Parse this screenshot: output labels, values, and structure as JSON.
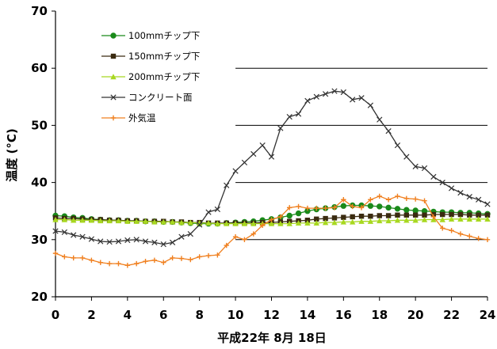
{
  "chart_data": {
    "type": "line",
    "xlabel": "平成22年 8月 18日",
    "ylabel": "温度 (°C)",
    "xlim": [
      0,
      24
    ],
    "ylim": [
      20,
      70
    ],
    "xticks": [
      "0",
      "2",
      "4",
      "6",
      "8",
      "10",
      "12",
      "14",
      "16",
      "18",
      "20",
      "22",
      "24"
    ],
    "yticks": [
      "20",
      "30",
      "40",
      "50",
      "60",
      "70"
    ],
    "gridlines": [
      30,
      40,
      50,
      60
    ],
    "grid_from_x": 10,
    "legend": "top-left",
    "x": [
      0,
      0.5,
      1,
      1.5,
      2,
      2.5,
      3,
      3.5,
      4,
      4.5,
      5,
      5.5,
      6,
      6.5,
      7,
      7.5,
      8,
      8.5,
      9,
      9.5,
      10,
      10.5,
      11,
      11.5,
      12,
      12.5,
      13,
      13.5,
      14,
      14.5,
      15,
      15.5,
      16,
      16.5,
      17,
      17.5,
      18,
      18.5,
      19,
      19.5,
      20,
      20.5,
      21,
      21.5,
      22,
      22.5,
      23,
      23.5,
      24
    ],
    "series": [
      {
        "name": "100mmチップ下",
        "color": "#1a8a1a",
        "marker": "circle",
        "values": [
          34.2,
          34.1,
          33.9,
          33.8,
          33.6,
          33.5,
          33.4,
          33.4,
          33.3,
          33.3,
          33.2,
          33.2,
          33.1,
          33.1,
          33.0,
          32.9,
          32.8,
          32.8,
          32.8,
          32.9,
          33.0,
          33.1,
          33.2,
          33.4,
          33.6,
          33.9,
          34.2,
          34.6,
          35.0,
          35.3,
          35.5,
          35.7,
          35.9,
          36.0,
          36.0,
          35.9,
          35.8,
          35.6,
          35.4,
          35.2,
          35.1,
          35.0,
          34.9,
          34.8,
          34.8,
          34.7,
          34.7,
          34.6,
          34.5
        ]
      },
      {
        "name": "150mmチップ下",
        "color": "#3a2a10",
        "marker": "square",
        "values": [
          33.8,
          33.7,
          33.7,
          33.6,
          33.5,
          33.5,
          33.4,
          33.4,
          33.3,
          33.3,
          33.2,
          33.2,
          33.2,
          33.1,
          33.1,
          33.0,
          33.0,
          32.9,
          32.9,
          32.9,
          32.9,
          32.9,
          32.9,
          33.0,
          33.0,
          33.1,
          33.2,
          33.3,
          33.4,
          33.6,
          33.7,
          33.8,
          33.9,
          34.0,
          34.1,
          34.1,
          34.2,
          34.2,
          34.3,
          34.3,
          34.3,
          34.3,
          34.4,
          34.4,
          34.4,
          34.4,
          34.3,
          34.3,
          34.3
        ]
      },
      {
        "name": "200mmチップ下",
        "color": "#a8d820",
        "marker": "triangle",
        "values": [
          33.5,
          33.5,
          33.4,
          33.4,
          33.4,
          33.3,
          33.3,
          33.3,
          33.2,
          33.2,
          33.2,
          33.1,
          33.1,
          33.1,
          33.0,
          33.0,
          32.9,
          32.9,
          32.8,
          32.8,
          32.8,
          32.8,
          32.8,
          32.8,
          32.8,
          32.8,
          32.8,
          32.9,
          32.9,
          32.9,
          33.0,
          33.0,
          33.1,
          33.1,
          33.2,
          33.2,
          33.3,
          33.3,
          33.4,
          33.4,
          33.4,
          33.5,
          33.5,
          33.5,
          33.6,
          33.6,
          33.6,
          33.6,
          33.6
        ]
      },
      {
        "name": "コンクリート面",
        "color": "#333333",
        "marker": "x",
        "values": [
          31.5,
          31.3,
          30.8,
          30.5,
          30.1,
          29.7,
          29.6,
          29.7,
          29.9,
          30.0,
          29.7,
          29.5,
          29.2,
          29.5,
          30.5,
          31.0,
          32.6,
          34.8,
          35.3,
          39.5,
          42.0,
          43.5,
          45.0,
          46.5,
          44.5,
          49.5,
          51.5,
          52.0,
          54.3,
          55.0,
          55.5,
          56.0,
          55.8,
          54.5,
          54.8,
          53.5,
          51.0,
          49.0,
          46.5,
          44.5,
          42.8,
          42.5,
          41.0,
          40.0,
          39.0,
          38.2,
          37.5,
          37.0,
          36.2
        ]
      },
      {
        "name": "外気温",
        "color": "#f08020",
        "marker": "plus",
        "values": [
          27.6,
          27.0,
          26.8,
          26.8,
          26.4,
          26.0,
          25.8,
          25.8,
          25.5,
          25.8,
          26.2,
          26.4,
          26.0,
          26.8,
          26.7,
          26.5,
          27.0,
          27.2,
          27.3,
          29.0,
          30.5,
          30.0,
          31.0,
          32.5,
          33.5,
          34.0,
          35.6,
          35.8,
          35.5,
          35.5,
          35.5,
          35.6,
          37.0,
          35.8,
          35.6,
          37.0,
          37.6,
          37.0,
          37.6,
          37.2,
          37.1,
          36.8,
          34.0,
          32.0,
          31.6,
          31.0,
          30.6,
          30.2,
          30.0
        ]
      }
    ]
  }
}
